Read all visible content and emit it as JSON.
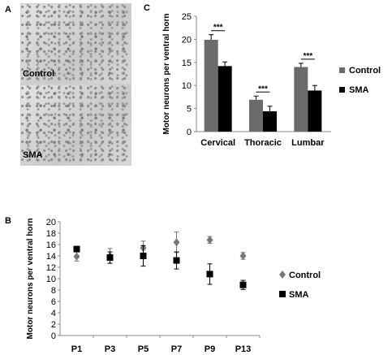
{
  "panels": {
    "a": {
      "label": "A",
      "images": [
        {
          "label": "Control"
        },
        {
          "label": "SMA"
        }
      ]
    },
    "b": {
      "label": "B"
    },
    "c": {
      "label": "C"
    }
  },
  "chart_data": [
    {
      "type": "bar",
      "panel": "C",
      "categories": [
        "Cervical",
        "Thoracic",
        "Lumbar"
      ],
      "series": [
        {
          "name": "Control",
          "color": "#6b6b6b",
          "values": [
            19.9,
            6.9,
            14.0
          ],
          "errors": [
            1.1,
            0.8,
            0.8
          ]
        },
        {
          "name": "SMA",
          "color": "#000000",
          "values": [
            14.2,
            4.4,
            8.9
          ],
          "errors": [
            0.9,
            1.1,
            1.1
          ]
        }
      ],
      "ylabel": "Motor neurons per ventral horn",
      "ylim": [
        0,
        25
      ],
      "yticks": [
        0,
        5,
        10,
        15,
        20,
        25
      ],
      "significance": [
        "***",
        "***",
        "***"
      ],
      "legend": "right"
    },
    {
      "type": "scatter",
      "panel": "B",
      "categories": [
        "P1",
        "P3",
        "P5",
        "P7",
        "P9",
        "P13"
      ],
      "series": [
        {
          "name": "Control",
          "marker": "diamond",
          "color": "#777777",
          "values": [
            13.9,
            14.0,
            15.4,
            16.4,
            16.8,
            14.0
          ],
          "errors": [
            0.8,
            1.3,
            1.2,
            1.8,
            0.6,
            0.6
          ]
        },
        {
          "name": "SMA",
          "marker": "square",
          "color": "#000000",
          "values": [
            15.2,
            13.7,
            14.0,
            13.2,
            10.8,
            8.9
          ],
          "errors": [
            0.4,
            1.0,
            1.8,
            1.5,
            1.8,
            0.8
          ]
        }
      ],
      "ylabel": "Motor neurons per ventral horn",
      "ylim": [
        0,
        20
      ],
      "yticks": [
        0,
        2,
        4,
        6,
        8,
        10,
        12,
        14,
        16,
        18,
        20
      ],
      "legend": "right"
    }
  ]
}
